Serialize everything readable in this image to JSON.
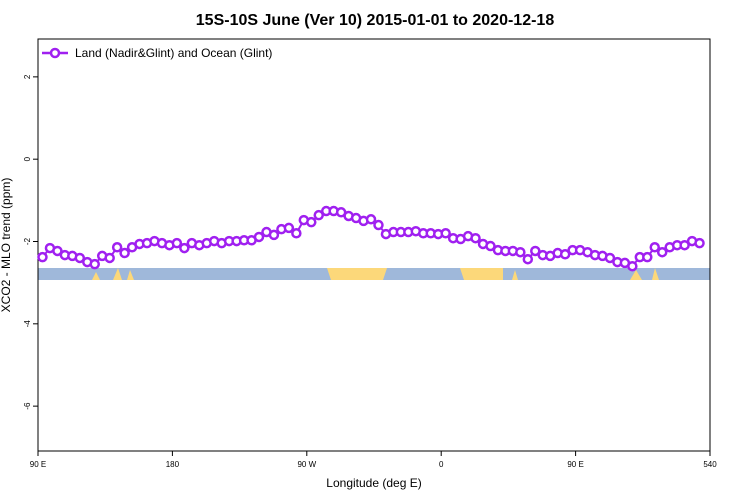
{
  "chart_data": {
    "type": "line",
    "title": "15S-10S June (Ver 10)   2015-01-01 to 2020-12-18",
    "xlabel": "Longitude (deg E)",
    "ylabel": "XCO2 - MLO trend (ppm)",
    "xlim": [
      90,
      540
    ],
    "xticks": [
      {
        "value": 90,
        "label": "90 E"
      },
      180,
      {
        "value": 270,
        "label": "90 W"
      },
      {
        "value": 360,
        "label": "0"
      },
      {
        "value": 450,
        "label": "90 E"
      },
      540
    ],
    "ylim": [
      -7.09,
      2.92
    ],
    "yticks": [
      2,
      0,
      -2,
      -4,
      -6
    ],
    "legend": "top-left",
    "series": [
      {
        "name": "Land (Nadir&Glint) and Ocean (Glint)",
        "color": "#a020f0",
        "x": [
          93,
          98,
          103,
          108,
          113,
          118,
          123,
          128,
          133,
          138,
          143,
          148,
          153,
          158,
          163,
          168,
          173,
          178,
          183,
          188,
          193,
          198,
          203,
          208,
          213,
          218,
          223,
          228,
          233,
          238,
          243,
          248,
          253,
          258,
          263,
          268,
          273,
          278,
          283,
          288,
          293,
          298,
          303,
          308,
          313,
          318,
          323,
          328,
          333,
          338,
          343,
          348,
          353,
          358,
          363,
          368,
          373,
          378,
          383,
          388,
          393,
          398,
          403,
          408,
          413,
          418,
          423,
          428,
          433,
          438,
          443,
          448,
          453,
          458,
          463,
          468,
          473,
          478,
          483,
          488,
          493,
          498,
          503,
          508,
          513,
          518,
          523,
          528,
          533
        ],
        "values": [
          -2.38,
          -2.16,
          -2.23,
          -2.33,
          -2.35,
          -2.4,
          -2.5,
          -2.55,
          -2.35,
          -2.4,
          -2.14,
          -2.28,
          -2.14,
          -2.06,
          -2.04,
          -1.99,
          -2.04,
          -2.09,
          -2.04,
          -2.16,
          -2.04,
          -2.09,
          -2.04,
          -1.99,
          -2.04,
          -1.99,
          -1.99,
          -1.97,
          -1.97,
          -1.89,
          -1.77,
          -1.84,
          -1.7,
          -1.67,
          -1.8,
          -1.48,
          -1.53,
          -1.36,
          -1.26,
          -1.26,
          -1.29,
          -1.38,
          -1.43,
          -1.5,
          -1.46,
          -1.6,
          -1.82,
          -1.77,
          -1.77,
          -1.77,
          -1.75,
          -1.8,
          -1.8,
          -1.82,
          -1.8,
          -1.92,
          -1.94,
          -1.87,
          -1.92,
          -2.06,
          -2.11,
          -2.21,
          -2.23,
          -2.23,
          -2.26,
          -2.43,
          -2.23,
          -2.33,
          -2.35,
          -2.28,
          -2.31,
          -2.21,
          -2.21,
          -2.26,
          -2.33,
          -2.35,
          -2.4,
          -2.5,
          -2.52,
          -2.6,
          -2.38,
          -2.38,
          -2.14,
          -2.26,
          -2.14,
          -2.09,
          -2.09,
          -1.99,
          -2.04
        ]
      }
    ]
  }
}
